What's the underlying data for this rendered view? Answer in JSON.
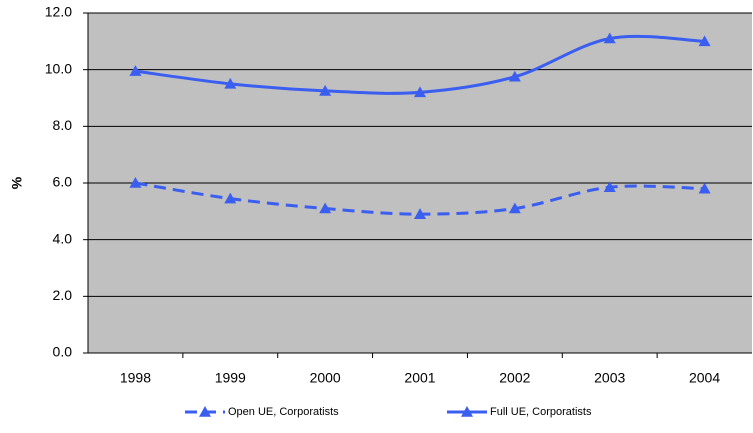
{
  "chart_data": {
    "type": "line",
    "smooth": true,
    "marker": "triangle",
    "ylabel": "%",
    "categories": [
      "1998",
      "1999",
      "2000",
      "2001",
      "2002",
      "2003",
      "2004"
    ],
    "series": [
      {
        "name": "Open UE, Corporatists",
        "color": "#3a5ef0",
        "dashed": true,
        "values": [
          6.0,
          5.45,
          5.1,
          4.9,
          5.1,
          5.85,
          5.8
        ]
      },
      {
        "name": "Full UE, Corporatists",
        "color": "#3a5ef0",
        "dashed": false,
        "values": [
          9.95,
          9.5,
          9.25,
          9.2,
          9.75,
          11.1,
          11.0
        ]
      }
    ],
    "ylim": [
      0,
      12
    ],
    "yticks": [
      {
        "value": 0,
        "label": "0.0"
      },
      {
        "value": 2,
        "label": "2.0"
      },
      {
        "value": 4,
        "label": "4.0"
      },
      {
        "value": 6,
        "label": "6.0"
      },
      {
        "value": 8,
        "label": "8.0"
      },
      {
        "value": 10,
        "label": "10.0"
      },
      {
        "value": 12,
        "label": "12.0"
      }
    ],
    "grid": true,
    "plot_background": "#c0c0c0",
    "legend": "bottom"
  }
}
